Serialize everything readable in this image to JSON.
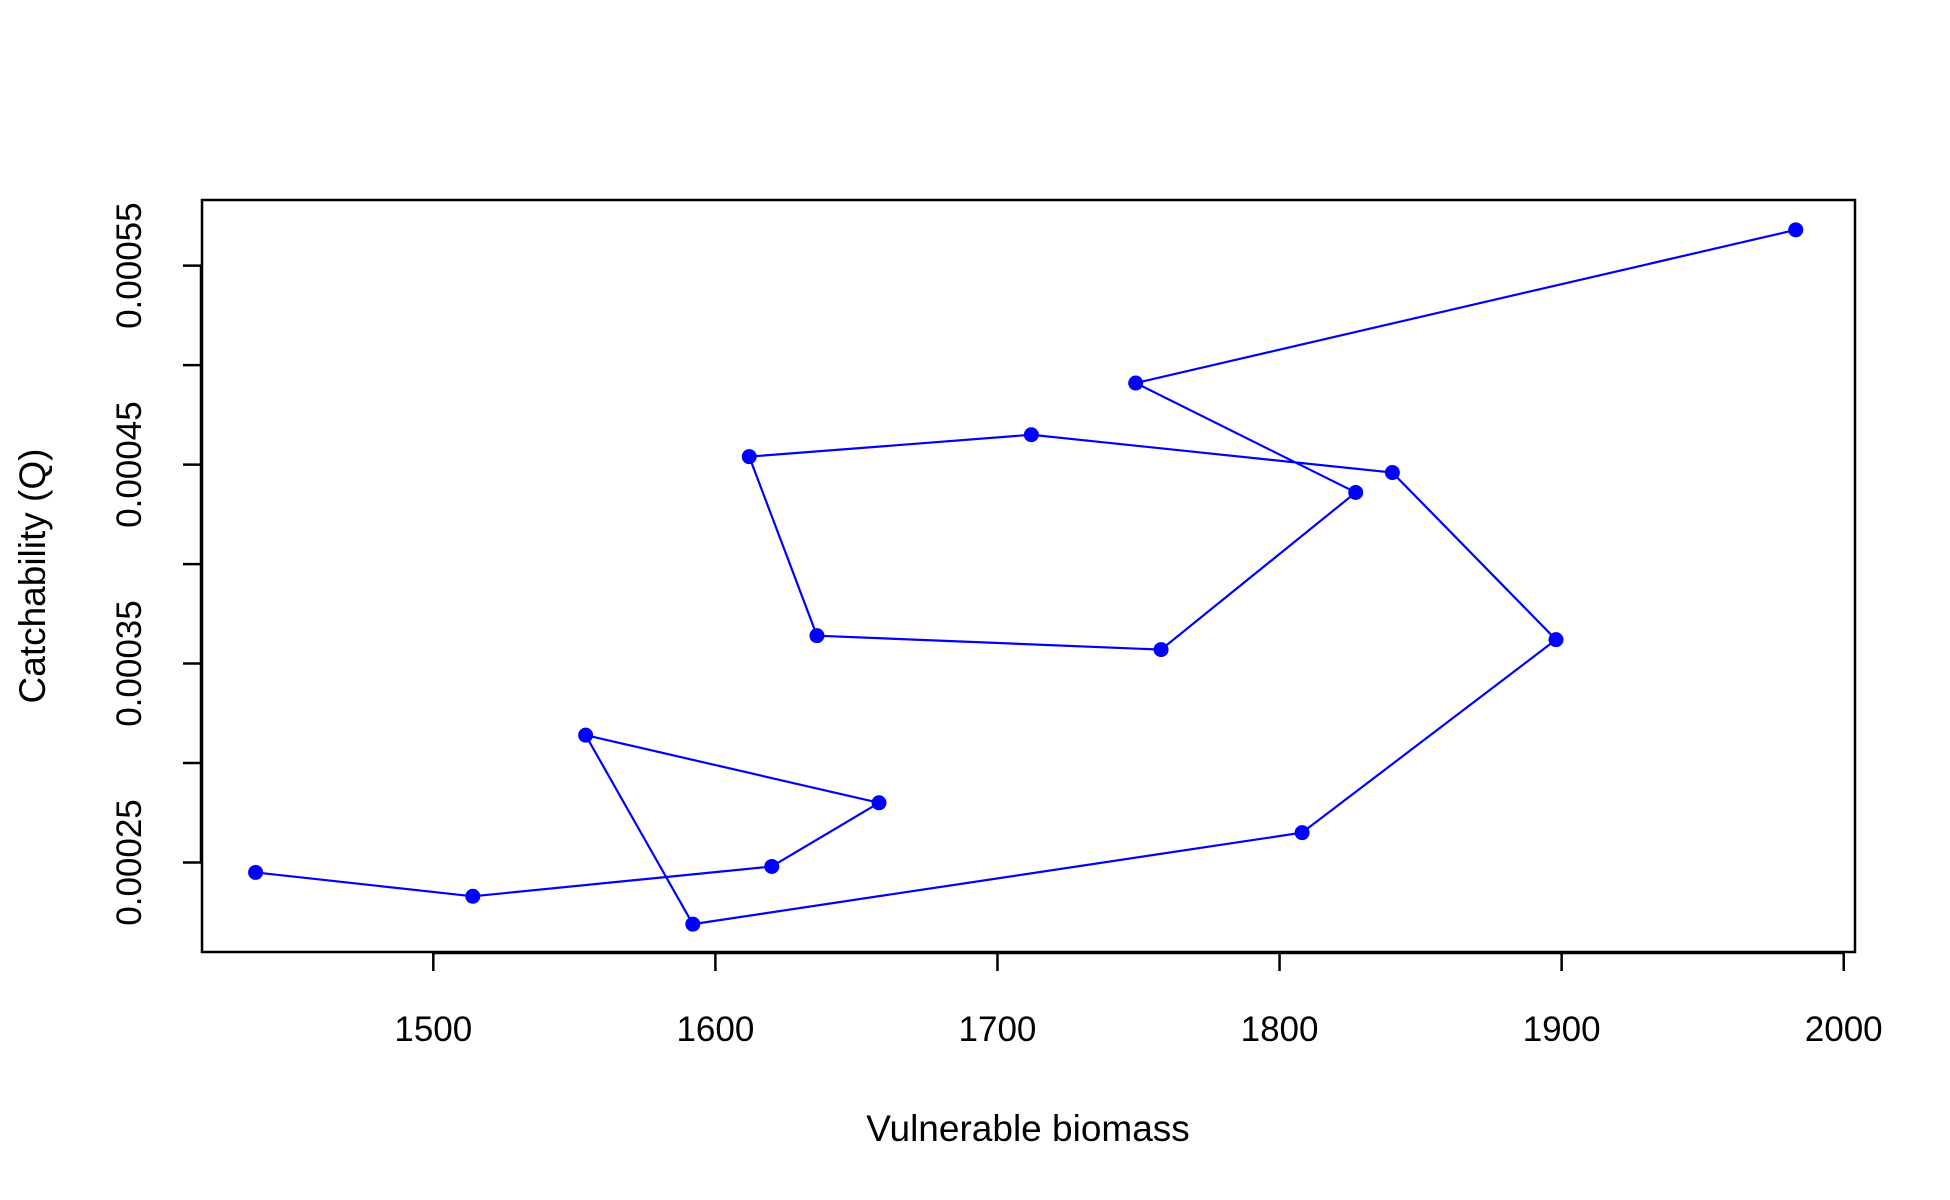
{
  "chart_data": {
    "type": "line",
    "title": "",
    "xlabel": "Vulnerable biomass",
    "ylabel": "Catchability (Q)",
    "xlim": [
      1418,
      2004
    ],
    "ylim": [
      0.000205,
      0.000583
    ],
    "x_ticks": [
      1500,
      1600,
      1700,
      1800,
      1900,
      2000
    ],
    "x_tick_labels": [
      "1500",
      "1600",
      "1700",
      "1800",
      "1900",
      "2000"
    ],
    "y_ticks": [
      0.00025,
      0.0003,
      0.00035,
      0.0004,
      0.00045,
      0.0005,
      0.00055
    ],
    "y_tick_labels": [
      "0.00025",
      "",
      "0.00035",
      "",
      "0.00045",
      "",
      "0.00055"
    ],
    "grid": false,
    "legend": "none",
    "series": [
      {
        "color": "#0000ff",
        "marker": "circle",
        "points": [
          {
            "x": 1437,
            "y": 0.000245
          },
          {
            "x": 1514,
            "y": 0.000233
          },
          {
            "x": 1620,
            "y": 0.000248
          },
          {
            "x": 1658,
            "y": 0.00028
          },
          {
            "x": 1554,
            "y": 0.000314
          },
          {
            "x": 1592,
            "y": 0.000219
          },
          {
            "x": 1808,
            "y": 0.000265
          },
          {
            "x": 1898,
            "y": 0.000362
          },
          {
            "x": 1840,
            "y": 0.000446
          },
          {
            "x": 1712,
            "y": 0.000465
          },
          {
            "x": 1612,
            "y": 0.000454
          },
          {
            "x": 1636,
            "y": 0.000364
          },
          {
            "x": 1758,
            "y": 0.000357
          },
          {
            "x": 1827,
            "y": 0.000436
          },
          {
            "x": 1749,
            "y": 0.000491
          },
          {
            "x": 1983,
            "y": 0.000568
          }
        ]
      }
    ]
  }
}
